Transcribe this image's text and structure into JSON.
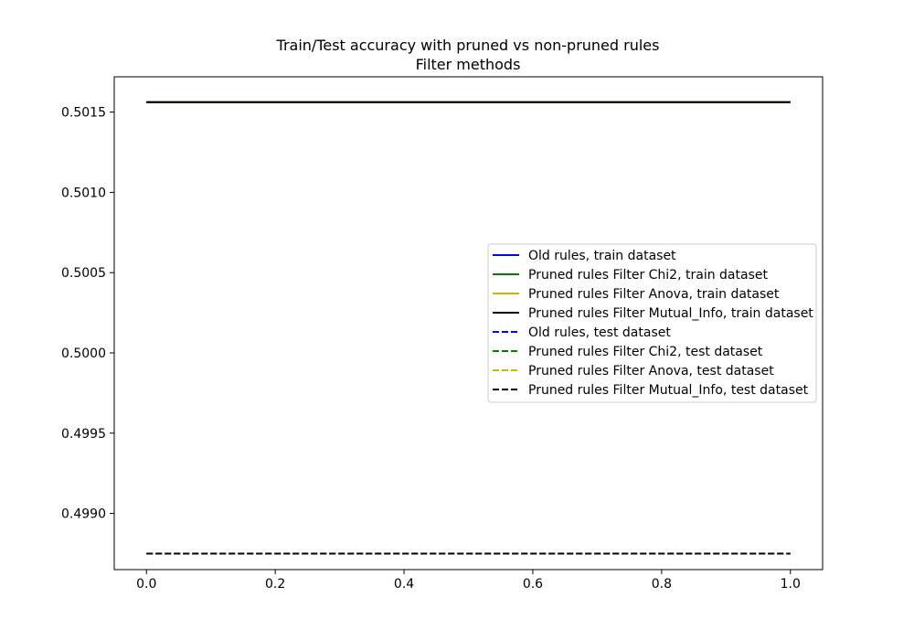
{
  "chart_data": {
    "type": "line",
    "title": "Train/Test accuracy with pruned vs non-pruned rules",
    "subtitle": "Filter methods",
    "xlabel": "",
    "ylabel": "",
    "xlim": [
      -0.05,
      1.05
    ],
    "ylim": [
      0.49865,
      0.50172
    ],
    "xticks": [
      0.0,
      0.2,
      0.4,
      0.6,
      0.8,
      1.0
    ],
    "xtick_labels": [
      "0.0",
      "0.2",
      "0.4",
      "0.6",
      "0.8",
      "1.0"
    ],
    "yticks": [
      0.499,
      0.4995,
      0.5,
      0.5005,
      0.501,
      0.5015
    ],
    "ytick_labels": [
      "0.4990",
      "0.4995",
      "0.5000",
      "0.5005",
      "0.5010",
      "0.5015"
    ],
    "grid": false,
    "legend_position": "center-right",
    "series": [
      {
        "name": "Old rules, train dataset",
        "color": "#0000ff",
        "dash": "solid",
        "x": [
          0,
          1
        ],
        "y": [
          0.501562,
          0.501562
        ]
      },
      {
        "name": "Pruned rules Filter Chi2, train dataset",
        "color": "#008000",
        "dash": "solid",
        "x": [
          0,
          1
        ],
        "y": [
          0.501562,
          0.501562
        ]
      },
      {
        "name": "Pruned rules Filter Anova, train dataset",
        "color": "#bfbf00",
        "dash": "solid",
        "x": [
          0,
          1
        ],
        "y": [
          0.501562,
          0.501562
        ]
      },
      {
        "name": "Pruned rules Filter Mutual_Info, train dataset",
        "color": "#000000",
        "dash": "solid",
        "x": [
          0,
          1
        ],
        "y": [
          0.501562,
          0.501562
        ]
      },
      {
        "name": "Old rules, test dataset",
        "color": "#0000ff",
        "dash": "dashed",
        "x": [
          0,
          1
        ],
        "y": [
          0.49875,
          0.49875
        ]
      },
      {
        "name": "Pruned rules Filter Chi2, test dataset",
        "color": "#008000",
        "dash": "dashed",
        "x": [
          0,
          1
        ],
        "y": [
          0.49875,
          0.49875
        ]
      },
      {
        "name": "Pruned rules Filter Anova, test dataset",
        "color": "#bfbf00",
        "dash": "dashed",
        "x": [
          0,
          1
        ],
        "y": [
          0.49875,
          0.49875
        ]
      },
      {
        "name": "Pruned rules Filter Mutual_Info, test dataset",
        "color": "#000000",
        "dash": "dashed",
        "x": [
          0,
          1
        ],
        "y": [
          0.49875,
          0.49875
        ]
      }
    ]
  }
}
